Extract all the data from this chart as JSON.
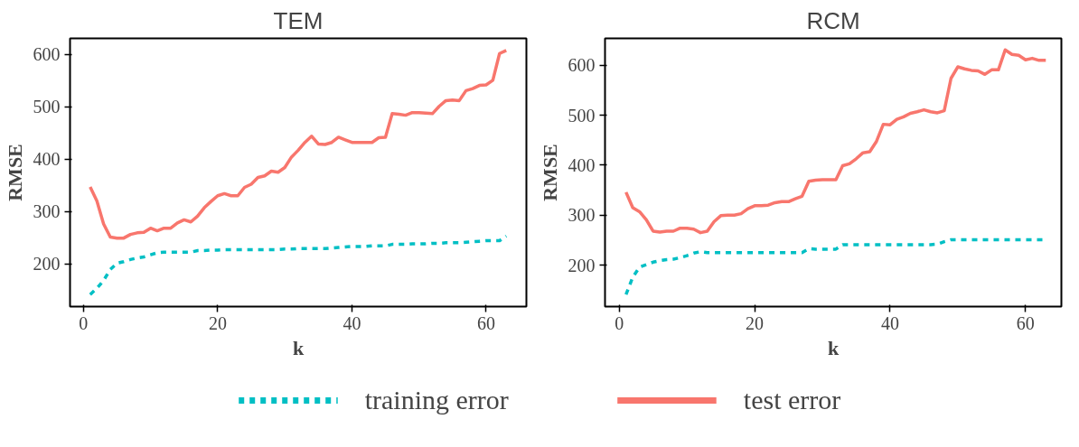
{
  "chart_data": [
    {
      "type": "line",
      "title": "TEM",
      "xlabel": "k",
      "ylabel": "RMSE",
      "xlim": [
        -2,
        66
      ],
      "ylim": [
        118,
        631
      ],
      "xticks": [
        0,
        20,
        40,
        60
      ],
      "yticks": [
        200,
        300,
        400,
        500,
        600
      ],
      "grid": false,
      "legend": "bottom",
      "x": [
        1,
        2,
        3,
        4,
        5,
        6,
        7,
        8,
        9,
        10,
        11,
        12,
        13,
        14,
        15,
        16,
        17,
        18,
        19,
        20,
        21,
        22,
        23,
        24,
        25,
        26,
        27,
        28,
        29,
        30,
        31,
        32,
        33,
        34,
        35,
        36,
        37,
        38,
        39,
        40,
        41,
        42,
        43,
        44,
        45,
        46,
        47,
        48,
        49,
        50,
        51,
        52,
        53,
        54,
        55,
        56,
        57,
        58,
        59,
        60,
        61,
        62,
        63
      ],
      "series": [
        {
          "name": "training error",
          "color": "#00bfc4",
          "line_style": "dashed",
          "values": [
            141,
            153,
            168,
            189,
            201,
            204,
            208,
            211,
            213,
            217,
            221,
            222,
            222,
            222,
            222,
            222,
            225,
            225,
            226,
            226,
            227,
            227,
            227,
            227,
            227,
            227,
            227,
            227,
            227,
            228,
            228,
            229,
            229,
            229,
            229,
            229,
            230,
            231,
            232,
            233,
            233,
            233,
            234,
            234,
            234,
            237,
            237,
            237,
            238,
            238,
            238,
            239,
            239,
            240,
            240,
            240,
            241,
            242,
            243,
            244,
            244,
            244,
            253
          ]
        },
        {
          "name": "test error",
          "color": "#f8766d",
          "line_style": "solid",
          "values": [
            347,
            320,
            276,
            251,
            249,
            249,
            256,
            259,
            260,
            268,
            263,
            268,
            268,
            278,
            284,
            280,
            291,
            307,
            319,
            330,
            334,
            330,
            330,
            346,
            352,
            365,
            368,
            377,
            375,
            384,
            404,
            417,
            432,
            444,
            429,
            428,
            432,
            442,
            437,
            432,
            432,
            432,
            432,
            441,
            442,
            487,
            486,
            484,
            489,
            489,
            488,
            487,
            501,
            512,
            513,
            512,
            531,
            535,
            541,
            542,
            551,
            602,
            608
          ]
        }
      ]
    },
    {
      "type": "line",
      "title": "RCM",
      "xlabel": "k",
      "ylabel": "RMSE",
      "xlim": [
        -2.1,
        65.3
      ],
      "ylim": [
        117,
        654
      ],
      "xticks": [
        0,
        20,
        40,
        60
      ],
      "yticks": [
        200,
        300,
        400,
        500,
        600
      ],
      "grid": false,
      "x": [
        1,
        2,
        3,
        4,
        5,
        6,
        7,
        8,
        9,
        10,
        11,
        12,
        13,
        14,
        15,
        16,
        17,
        18,
        19,
        20,
        21,
        22,
        23,
        24,
        25,
        26,
        27,
        28,
        29,
        30,
        31,
        32,
        33,
        34,
        35,
        36,
        37,
        38,
        39,
        40,
        41,
        42,
        43,
        44,
        45,
        46,
        47,
        48,
        49,
        50,
        51,
        52,
        53,
        54,
        55,
        56,
        57,
        58,
        59,
        60,
        61,
        62,
        63
      ],
      "series": [
        {
          "color": "#00bfc4",
          "line_style": "dashed",
          "values": [
            141,
            176,
            196,
            201,
            206,
            209,
            211,
            212,
            215,
            219,
            224,
            227,
            225,
            225,
            225,
            225,
            225,
            225,
            225,
            225,
            225,
            225,
            225,
            225,
            225,
            225,
            225,
            233,
            232,
            232,
            232,
            232,
            241,
            241,
            241,
            241,
            241,
            241,
            241,
            241,
            241,
            241,
            241,
            241,
            241,
            241,
            242,
            247,
            251,
            251,
            251,
            251,
            251,
            251,
            251,
            251,
            251,
            251,
            251,
            251,
            251,
            251,
            251
          ]
        },
        {
          "color": "#f8766d",
          "line_style": "solid",
          "values": [
            346,
            315,
            307,
            291,
            268,
            266,
            268,
            268,
            274,
            274,
            272,
            265,
            268,
            287,
            299,
            300,
            300,
            303,
            313,
            319,
            319,
            320,
            325,
            327,
            327,
            333,
            338,
            368,
            370,
            371,
            371,
            371,
            399,
            403,
            413,
            425,
            427,
            448,
            482,
            481,
            492,
            497,
            504,
            507,
            511,
            507,
            505,
            509,
            574,
            597,
            593,
            590,
            589,
            582,
            591,
            591,
            631,
            622,
            620,
            611,
            614,
            610,
            610
          ]
        }
      ]
    }
  ]
}
